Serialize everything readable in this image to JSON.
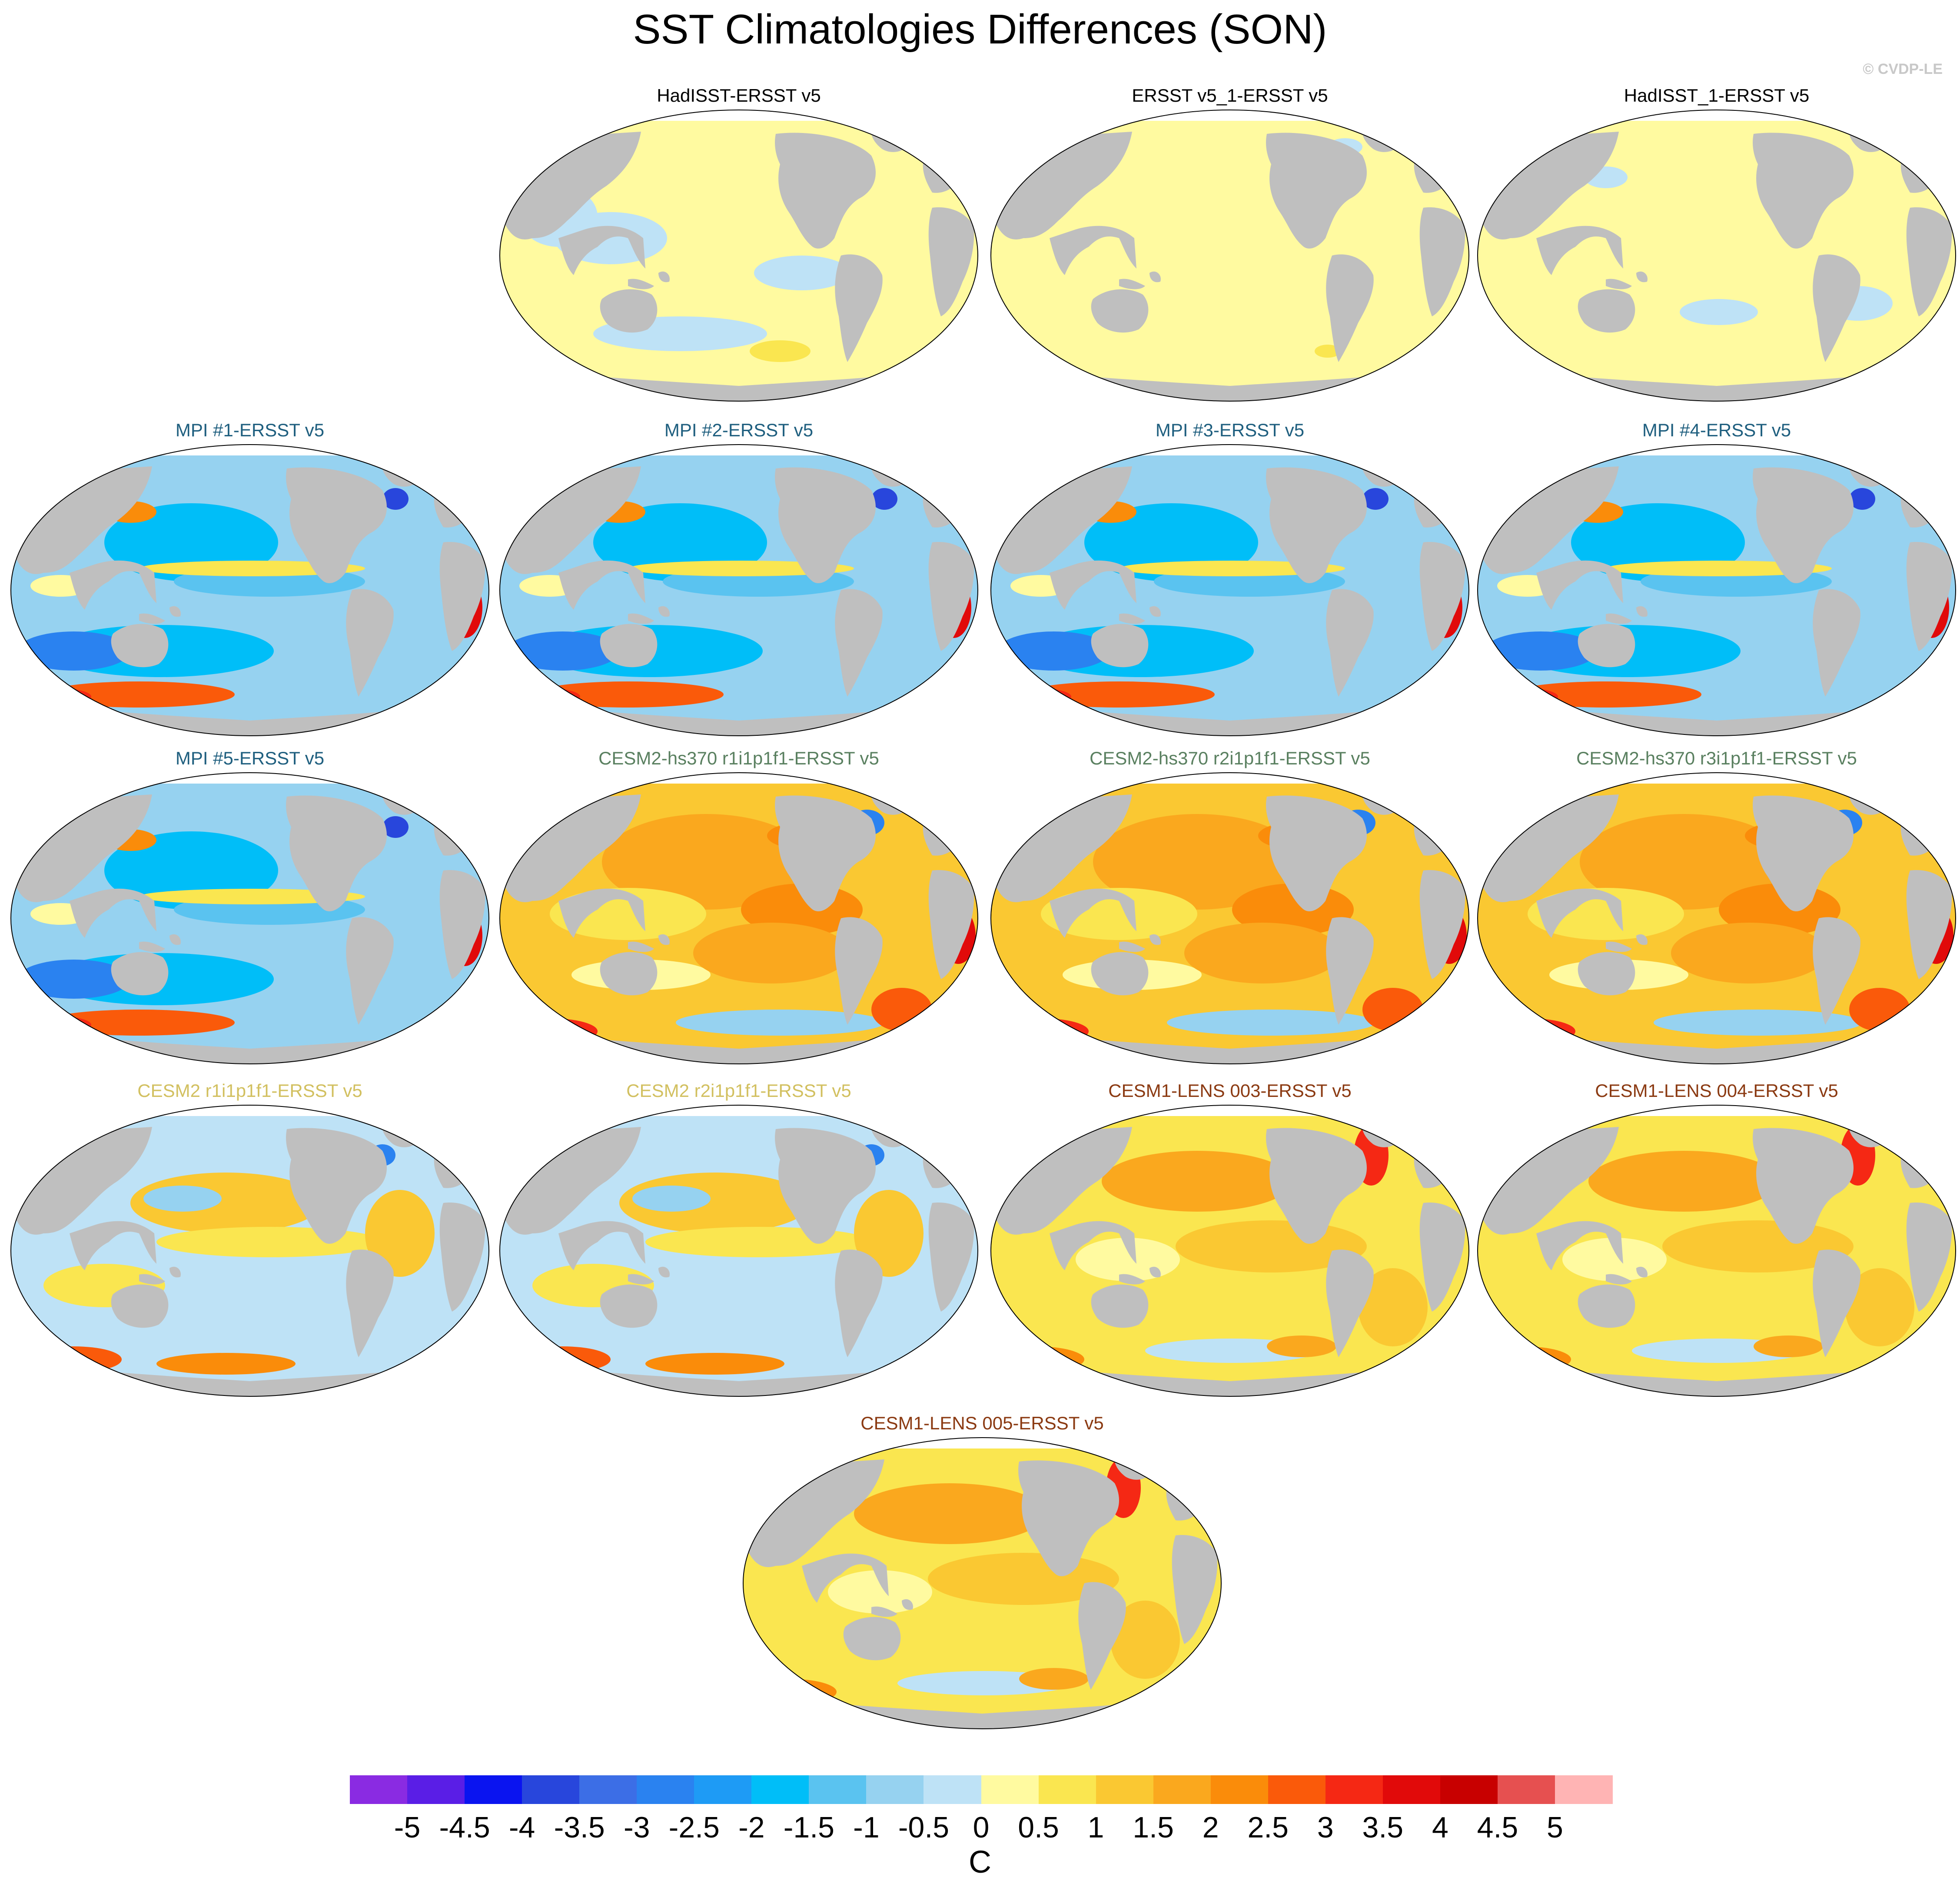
{
  "title": "SST Climatologies Differences (SON)",
  "credit": "© CVDP-LE",
  "colorbar": {
    "unit": "C",
    "ticks": [
      "-5",
      "-4.5",
      "-4",
      "-3.5",
      "-3",
      "-2.5",
      "-2",
      "-1.5",
      "-1",
      "-0.5",
      "0",
      "0.5",
      "1",
      "1.5",
      "2",
      "2.5",
      "3",
      "3.5",
      "4",
      "4.5",
      "5"
    ],
    "colors": [
      "#8a2be2",
      "#5a1ee6",
      "#0a14f0",
      "#2846dc",
      "#3c6ee6",
      "#2a82f0",
      "#1e9bf5",
      "#00bef8",
      "#5ac3f0",
      "#96d2f0",
      "#bee2f6",
      "#fffaa0",
      "#fae650",
      "#fac832",
      "#faa81e",
      "#fa8c0a",
      "#fa5a0a",
      "#f52814",
      "#e10a0a",
      "#c80000",
      "#e65050",
      "#ffb4b4"
    ]
  },
  "panels": [
    {
      "label": "HadISST-ERSST v5",
      "label_color": "#000000",
      "pattern": "neutral_a"
    },
    {
      "label": "ERSST v5_1-ERSST v5",
      "label_color": "#000000",
      "pattern": "neutral_b"
    },
    {
      "label": "HadISST_1-ERSST v5",
      "label_color": "#000000",
      "pattern": "neutral_c"
    },
    {
      "label": "MPI #1-ERSST v5",
      "label_color": "#1f5f7f",
      "pattern": "cold"
    },
    {
      "label": "MPI #2-ERSST v5",
      "label_color": "#1f5f7f",
      "pattern": "cold"
    },
    {
      "label": "MPI #3-ERSST v5",
      "label_color": "#1f5f7f",
      "pattern": "cold"
    },
    {
      "label": "MPI #4-ERSST v5",
      "label_color": "#1f5f7f",
      "pattern": "cold"
    },
    {
      "label": "MPI #5-ERSST v5",
      "label_color": "#1f5f7f",
      "pattern": "cold"
    },
    {
      "label": "CESM2-hs370 r1i1p1f1-ERSST v5",
      "label_color": "#5a8060",
      "pattern": "hot"
    },
    {
      "label": "CESM2-hs370 r2i1p1f1-ERSST v5",
      "label_color": "#5a8060",
      "pattern": "hot"
    },
    {
      "label": "CESM2-hs370 r3i1p1f1-ERSST v5",
      "label_color": "#5a8060",
      "pattern": "hot"
    },
    {
      "label": "CESM2 r1i1p1f1-ERSST v5",
      "label_color": "#d2c060",
      "pattern": "mixed"
    },
    {
      "label": "CESM2 r2i1p1f1-ERSST v5",
      "label_color": "#d2c060",
      "pattern": "mixed"
    },
    {
      "label": "CESM1-LENS 003-ERSST v5",
      "label_color": "#8b3a12",
      "pattern": "warm"
    },
    {
      "label": "CESM1-LENS 004-ERSST v5",
      "label_color": "#8b3a12",
      "pattern": "warm"
    },
    {
      "label": "CESM1-LENS 005-ERSST v5",
      "label_color": "#8b3a12",
      "pattern": "warm"
    }
  ]
}
